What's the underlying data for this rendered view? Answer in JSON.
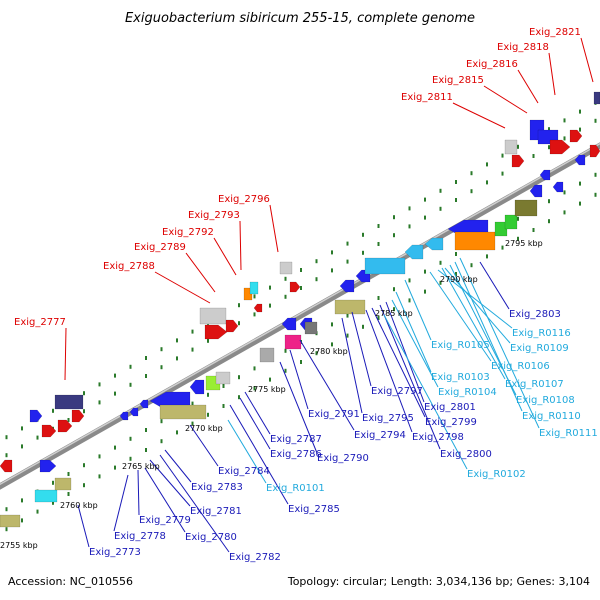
{
  "title": "Exiguobacterium sibiricum 255-15, complete genome",
  "accession_text": "Accession: NC_010556",
  "summary_text": "Topology: circular; Length: 3,034,136 bp; Genes: 3,104",
  "colors": {
    "top_strand_label": "#dd0000",
    "bottom_strand_label": "#1a1ab8",
    "rna_label": "#22aadd",
    "backbone": "#8a8a8a",
    "tick": "#2a7a2a"
  },
  "ticks": [
    {
      "label": "2755 kbp"
    },
    {
      "label": "2760 kbp"
    },
    {
      "label": "2765 kbp"
    },
    {
      "label": "2770 kbp"
    },
    {
      "label": "2775 kbp"
    },
    {
      "label": "2780 kbp"
    },
    {
      "label": "2785 kbp"
    },
    {
      "label": "2790 kbp"
    },
    {
      "label": "2795 kbp"
    }
  ],
  "top_labels": [
    {
      "text": "Exig_2777"
    },
    {
      "text": "Exig_2788"
    },
    {
      "text": "Exig_2789"
    },
    {
      "text": "Exig_2792"
    },
    {
      "text": "Exig_2793"
    },
    {
      "text": "Exig_2796"
    },
    {
      "text": "Exig_2811"
    },
    {
      "text": "Exig_2815"
    },
    {
      "text": "Exig_2816"
    },
    {
      "text": "Exig_2818"
    },
    {
      "text": "Exig_2821"
    }
  ],
  "bottom_labels": [
    {
      "text": "Exig_2773",
      "kind": "gene"
    },
    {
      "text": "Exig_2778",
      "kind": "gene"
    },
    {
      "text": "Exig_2779",
      "kind": "gene"
    },
    {
      "text": "Exig_2780",
      "kind": "gene"
    },
    {
      "text": "Exig_2781",
      "kind": "gene"
    },
    {
      "text": "Exig_2782",
      "kind": "gene"
    },
    {
      "text": "Exig_2783",
      "kind": "gene"
    },
    {
      "text": "Exig_2784",
      "kind": "gene"
    },
    {
      "text": "Exig_2785",
      "kind": "gene"
    },
    {
      "text": "Exig_R0101",
      "kind": "rna"
    },
    {
      "text": "Exig_2786",
      "kind": "gene"
    },
    {
      "text": "Exig_2787",
      "kind": "gene"
    },
    {
      "text": "Exig_2790",
      "kind": "gene"
    },
    {
      "text": "Exig_2791",
      "kind": "gene"
    },
    {
      "text": "Exig_2794",
      "kind": "gene"
    },
    {
      "text": "Exig_2795",
      "kind": "gene"
    },
    {
      "text": "Exig_2797",
      "kind": "gene"
    },
    {
      "text": "Exig_2798",
      "kind": "gene"
    },
    {
      "text": "Exig_2799",
      "kind": "gene"
    },
    {
      "text": "Exig_2800",
      "kind": "gene"
    },
    {
      "text": "Exig_2801",
      "kind": "gene"
    },
    {
      "text": "Exig_R0102",
      "kind": "rna"
    },
    {
      "text": "Exig_R0103",
      "kind": "rna"
    },
    {
      "text": "Exig_R0104",
      "kind": "rna"
    },
    {
      "text": "Exig_R0105",
      "kind": "rna"
    },
    {
      "text": "Exig_R0106",
      "kind": "rna"
    },
    {
      "text": "Exig_R0107",
      "kind": "rna"
    },
    {
      "text": "Exig_R0108",
      "kind": "rna"
    },
    {
      "text": "Exig_R0109",
      "kind": "rna"
    },
    {
      "text": "Exig_R0110",
      "kind": "rna"
    },
    {
      "text": "Exig_R0111",
      "kind": "rna"
    },
    {
      "text": "Exig_R0116",
      "kind": "rna"
    },
    {
      "text": "Exig_2803",
      "kind": "gene"
    }
  ]
}
